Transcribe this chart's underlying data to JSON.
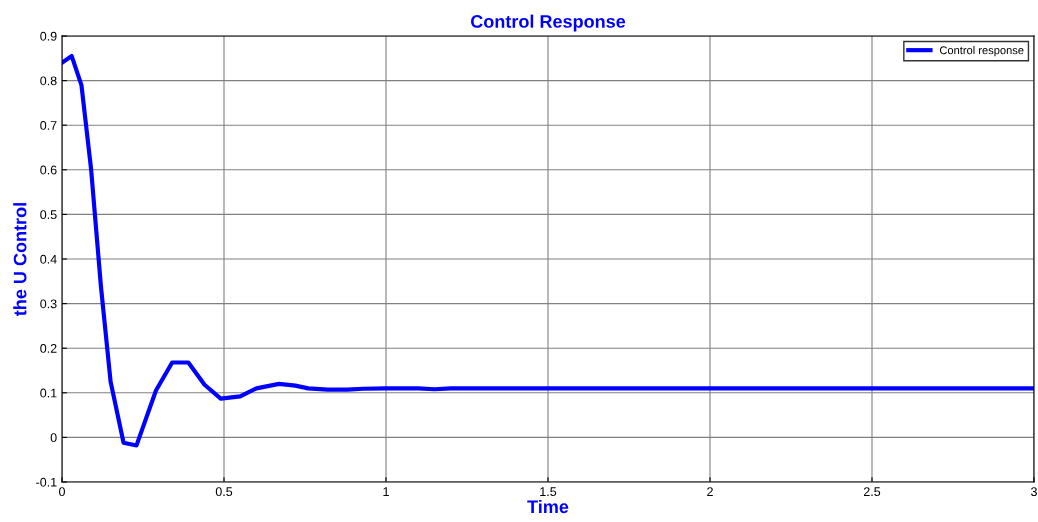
{
  "chart_data": {
    "type": "line",
    "title": "Control Response",
    "xlabel": "Time",
    "ylabel": "the U Control",
    "series": [
      {
        "name": "Control response",
        "color": "#0000ff",
        "x": [
          0,
          0.03,
          0.06,
          0.09,
          0.12,
          0.15,
          0.19,
          0.23,
          0.29,
          0.34,
          0.39,
          0.44,
          0.49,
          0.55,
          0.6,
          0.67,
          0.72,
          0.76,
          0.82,
          0.88,
          0.93,
          1.0,
          1.1,
          1.15,
          1.2,
          3.0
        ],
        "values": [
          0.84,
          0.855,
          0.79,
          0.6,
          0.34,
          0.125,
          -0.012,
          -0.018,
          0.105,
          0.168,
          0.168,
          0.118,
          0.087,
          0.092,
          0.11,
          0.12,
          0.116,
          0.11,
          0.107,
          0.107,
          0.109,
          0.11,
          0.11,
          0.108,
          0.11,
          0.11
        ]
      }
    ],
    "xlim": [
      0,
      3
    ],
    "xticks": [
      0,
      0.5,
      1,
      1.5,
      2,
      2.5,
      3
    ],
    "ylim": [
      -0.1,
      0.9
    ],
    "yticks": [
      -0.1,
      0,
      0.1,
      0.2,
      0.3,
      0.4,
      0.5,
      0.6,
      0.7,
      0.8,
      0.9
    ],
    "grid": true,
    "legend": "top right",
    "line_style": "solid",
    "marker": "none"
  }
}
